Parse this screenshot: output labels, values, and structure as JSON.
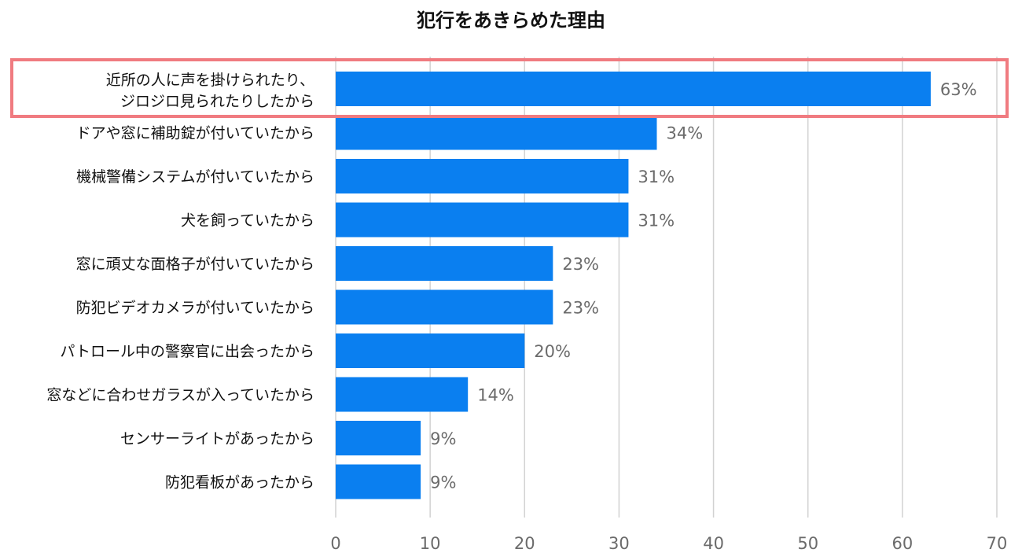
{
  "chart_data": {
    "type": "bar",
    "orientation": "horizontal",
    "title": "犯行をあきらめた理由",
    "categories": [
      [
        "近所の人に声を掛けられたり、",
        "ジロジロ見られたりしたから"
      ],
      [
        "ドアや窓に補助錠が付いていたから"
      ],
      [
        "機械警備システムが付いていたから"
      ],
      [
        "犬を飼っていたから"
      ],
      [
        "窓に頑丈な面格子が付いていたから"
      ],
      [
        "防犯ビデオカメラが付いていたから"
      ],
      [
        "パトロール中の警察官に出会ったから"
      ],
      [
        "窓などに合わせガラスが入っていたから"
      ],
      [
        "センサーライトがあったから"
      ],
      [
        "防犯看板があったから"
      ]
    ],
    "values": [
      63,
      34,
      31,
      31,
      23,
      23,
      20,
      14,
      9,
      9
    ],
    "value_labels": [
      "63%",
      "34%",
      "31%",
      "31%",
      "23%",
      "23%",
      "20%",
      "14%",
      "9%",
      "9%"
    ],
    "xlim": [
      0,
      70
    ],
    "x_ticks": [
      0,
      10,
      20,
      30,
      40,
      50,
      60,
      70
    ],
    "grid": "vertical",
    "legend": "none",
    "highlight_index": 0
  },
  "colors": {
    "bar": "#0a7ff0",
    "grid": "#d2d2d2",
    "highlight_box": "#f07b80",
    "value_text": "#6b6b6b",
    "label_text": "#111111"
  }
}
